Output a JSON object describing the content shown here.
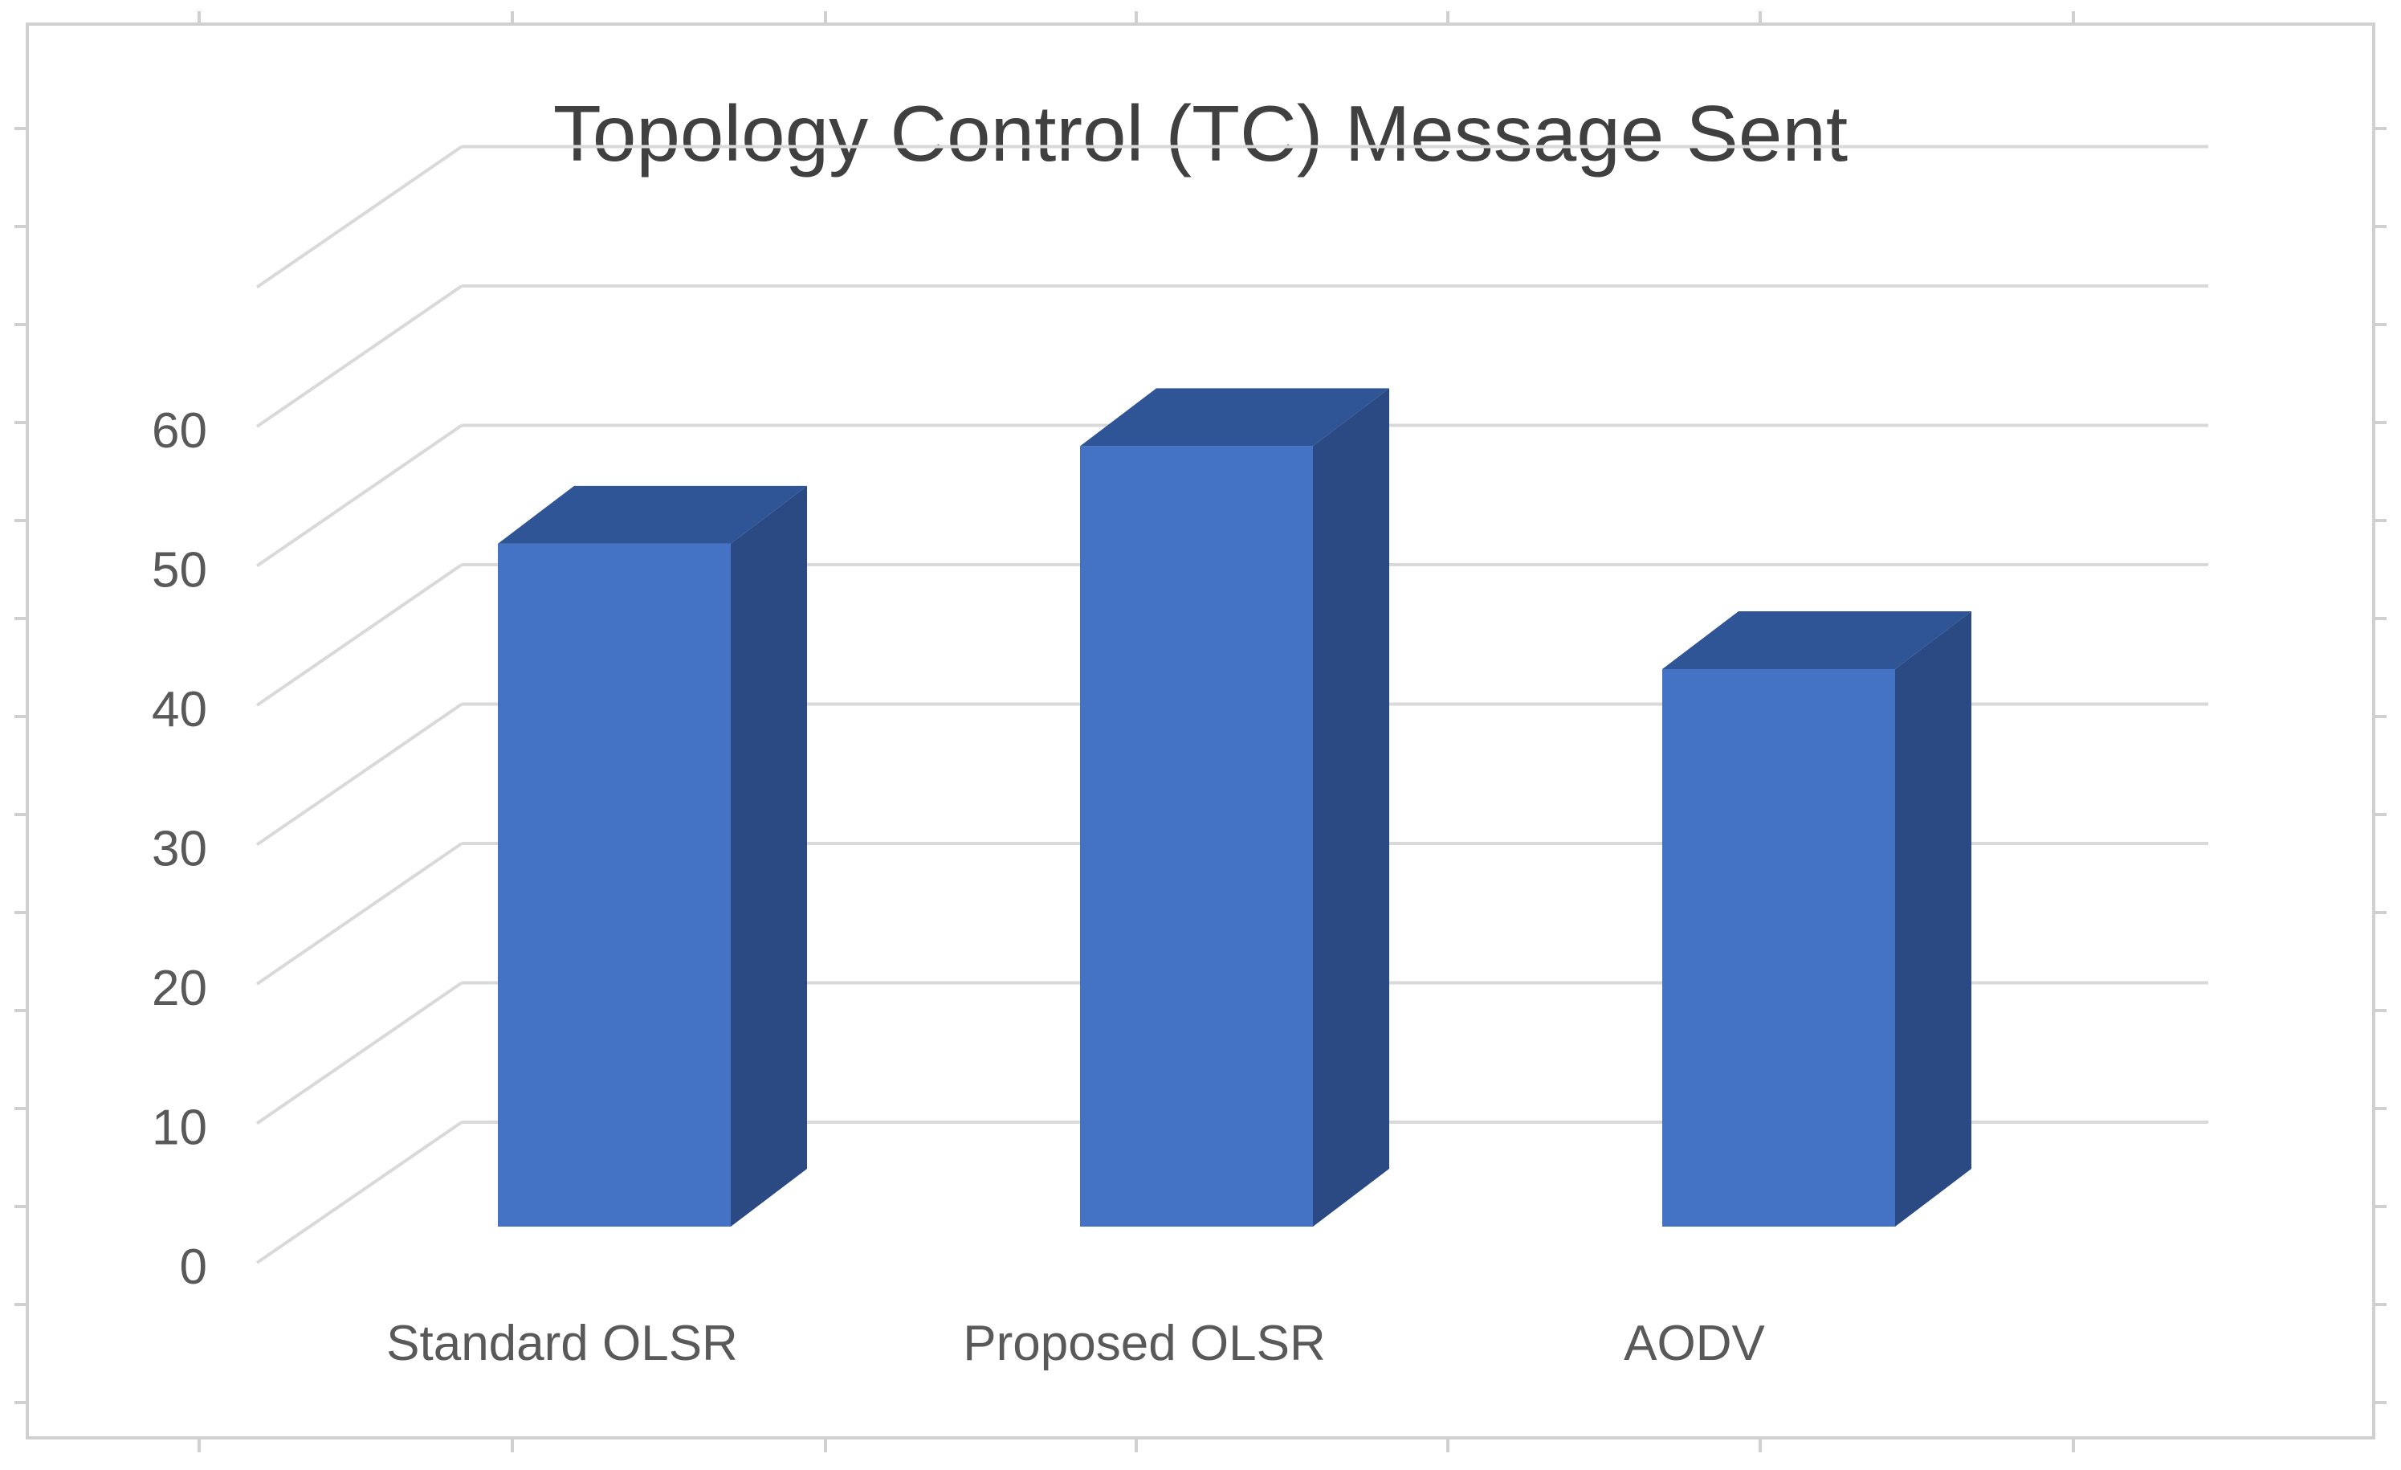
{
  "chart_data": {
    "type": "bar",
    "style": "3d-column",
    "title": "Topology Control (TC) Message Sent",
    "xlabel": "",
    "ylabel": "",
    "categories": [
      "Standard OLSR",
      "Proposed OLSR",
      "AODV"
    ],
    "values": [
      49,
      56,
      40
    ],
    "ylim": [
      0,
      60
    ],
    "yticks": [
      0,
      10,
      20,
      30,
      40,
      50,
      60
    ],
    "grid": true,
    "legend": "none",
    "colors": {
      "bar_front": "#4472C4",
      "bar_side": "#2B4A83",
      "bar_top": "#2F5597",
      "gridline": "#D9D9D9",
      "text": "#595959",
      "title": "#404040",
      "frame": "#D0D0D0"
    }
  }
}
